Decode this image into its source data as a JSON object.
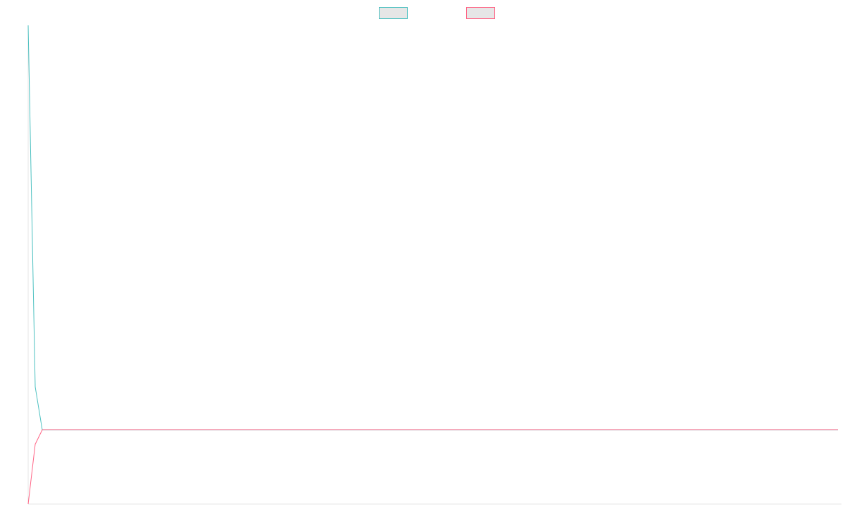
{
  "chart_data": {
    "type": "line",
    "title": "",
    "xlabel": "",
    "ylabel": "",
    "grid": false,
    "legend_position": "top-center",
    "x": [
      0,
      1,
      2,
      3,
      4,
      5,
      6,
      7,
      8,
      9,
      10,
      11,
      12,
      13,
      14,
      15,
      16,
      17,
      18,
      19,
      20,
      21,
      22,
      23,
      24,
      25,
      26,
      27,
      28,
      29,
      30,
      31,
      32,
      33,
      34,
      35,
      36,
      37,
      38,
      39,
      40,
      41,
      42,
      43,
      44,
      45,
      46,
      47,
      48,
      49,
      50,
      51,
      52,
      53,
      54,
      55,
      56,
      57,
      58,
      59,
      60,
      61,
      62,
      63,
      64,
      65,
      66,
      67,
      68,
      69,
      70,
      71,
      72,
      73,
      74,
      75,
      76,
      77,
      78,
      79,
      80,
      81,
      82,
      83,
      84,
      85,
      86,
      87,
      88,
      89,
      90,
      91,
      92,
      93,
      94,
      95,
      96,
      97,
      98,
      99,
      100,
      101,
      102,
      103,
      104,
      105,
      106,
      107,
      108,
      109,
      110,
      111,
      112,
      113,
      114,
      115
    ],
    "xlim": [
      0,
      115.5
    ],
    "ylim": [
      0,
      100
    ],
    "series": [
      {
        "color": "#4bc0c0",
        "fill": "#e6e6e6",
        "values": [
          100,
          24.5,
          15.5,
          15.5,
          15.5,
          15.5,
          15.5,
          15.5,
          15.5,
          15.5,
          15.5,
          15.5,
          15.5,
          15.5,
          15.5,
          15.5,
          15.5,
          15.5,
          15.5,
          15.5,
          15.5,
          15.5,
          15.5,
          15.5,
          15.5,
          15.5,
          15.5,
          15.5,
          15.5,
          15.5,
          15.5,
          15.5,
          15.5,
          15.5,
          15.5,
          15.5,
          15.5,
          15.5,
          15.5,
          15.5,
          15.5,
          15.5,
          15.5,
          15.5,
          15.5,
          15.5,
          15.5,
          15.5,
          15.5,
          15.5,
          15.5,
          15.5,
          15.5,
          15.5,
          15.5,
          15.5,
          15.5,
          15.5,
          15.5,
          15.5,
          15.5,
          15.5,
          15.5,
          15.5,
          15.5,
          15.5,
          15.5,
          15.5,
          15.5,
          15.5,
          15.5,
          15.5,
          15.5,
          15.5,
          15.5,
          15.5,
          15.5,
          15.5,
          15.5,
          15.5,
          15.5,
          15.5,
          15.5,
          15.5,
          15.5,
          15.5,
          15.5,
          15.5,
          15.5,
          15.5,
          15.5,
          15.5,
          15.5,
          15.5,
          15.5,
          15.5,
          15.5,
          15.5,
          15.5,
          15.5,
          15.5,
          15.5,
          15.5,
          15.5,
          15.5,
          15.5,
          15.5,
          15.5,
          15.5,
          15.5,
          15.5,
          15.5,
          15.5,
          15.5,
          15.5,
          15.5
        ]
      },
      {
        "color": "#ff6384",
        "fill": "#e6e6e6",
        "values": [
          0,
          12.5,
          15.5,
          15.5,
          15.5,
          15.5,
          15.5,
          15.5,
          15.5,
          15.5,
          15.5,
          15.5,
          15.5,
          15.5,
          15.5,
          15.5,
          15.5,
          15.5,
          15.5,
          15.5,
          15.5,
          15.5,
          15.5,
          15.5,
          15.5,
          15.5,
          15.5,
          15.5,
          15.5,
          15.5,
          15.5,
          15.5,
          15.5,
          15.5,
          15.5,
          15.5,
          15.5,
          15.5,
          15.5,
          15.5,
          15.5,
          15.5,
          15.5,
          15.5,
          15.5,
          15.5,
          15.5,
          15.5,
          15.5,
          15.5,
          15.5,
          15.5,
          15.5,
          15.5,
          15.5,
          15.5,
          15.5,
          15.5,
          15.5,
          15.5,
          15.5,
          15.5,
          15.5,
          15.5,
          15.5,
          15.5,
          15.5,
          15.5,
          15.5,
          15.5,
          15.5,
          15.5,
          15.5,
          15.5,
          15.5,
          15.5,
          15.5,
          15.5,
          15.5,
          15.5,
          15.5,
          15.5,
          15.5,
          15.5,
          15.5,
          15.5,
          15.5,
          15.5,
          15.5,
          15.5,
          15.5,
          15.5,
          15.5,
          15.5,
          15.5,
          15.5,
          15.5,
          15.5,
          15.5,
          15.5,
          15.5,
          15.5,
          15.5,
          15.5,
          15.5,
          15.5,
          15.5,
          15.5,
          15.5,
          15.5,
          15.5,
          15.5,
          15.5,
          15.5,
          15.5,
          15.5
        ]
      }
    ]
  }
}
